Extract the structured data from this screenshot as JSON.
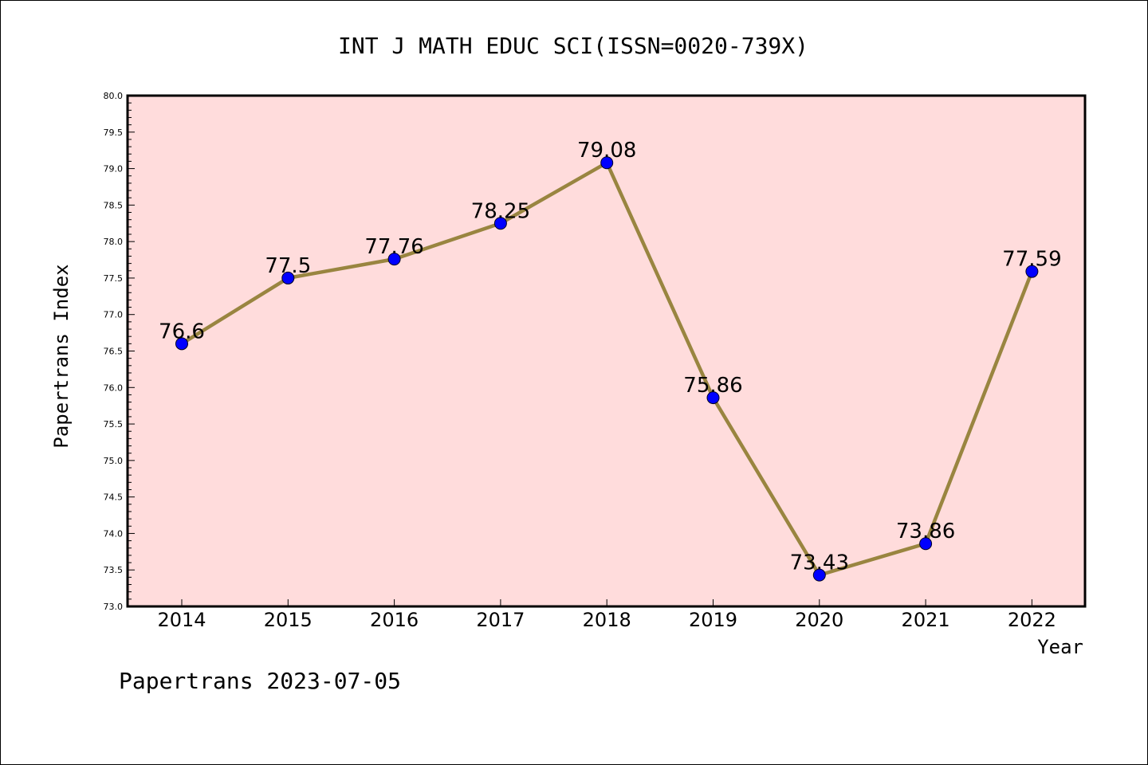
{
  "chart_data": {
    "type": "line",
    "title": "INT J MATH EDUC SCI(ISSN=0020-739X)",
    "xlabel": "Year",
    "ylabel": "Papertrans Index",
    "categories": [
      "2014",
      "2015",
      "2016",
      "2017",
      "2018",
      "2019",
      "2020",
      "2021",
      "2022"
    ],
    "values": [
      76.6,
      77.5,
      77.76,
      78.25,
      79.08,
      75.86,
      73.43,
      73.86,
      77.59
    ],
    "data_labels": [
      "76.6",
      "77.5",
      "77.76",
      "78.25",
      "79.08",
      "75.86",
      "73.43",
      "73.86",
      "77.59"
    ],
    "ylim": [
      73.0,
      80.0
    ],
    "yticks": [
      "73.0",
      "73.5",
      "74.0",
      "74.5",
      "75.0",
      "75.5",
      "76.0",
      "76.5",
      "77.0",
      "77.5",
      "78.0",
      "78.5",
      "79.0",
      "79.5",
      "80.0"
    ],
    "grid": false,
    "legend": "none",
    "colors": {
      "plot_background": "#ffdcdc",
      "line": "#998540",
      "marker": "#0000ff"
    }
  },
  "footer": "Papertrans 2023-07-05"
}
